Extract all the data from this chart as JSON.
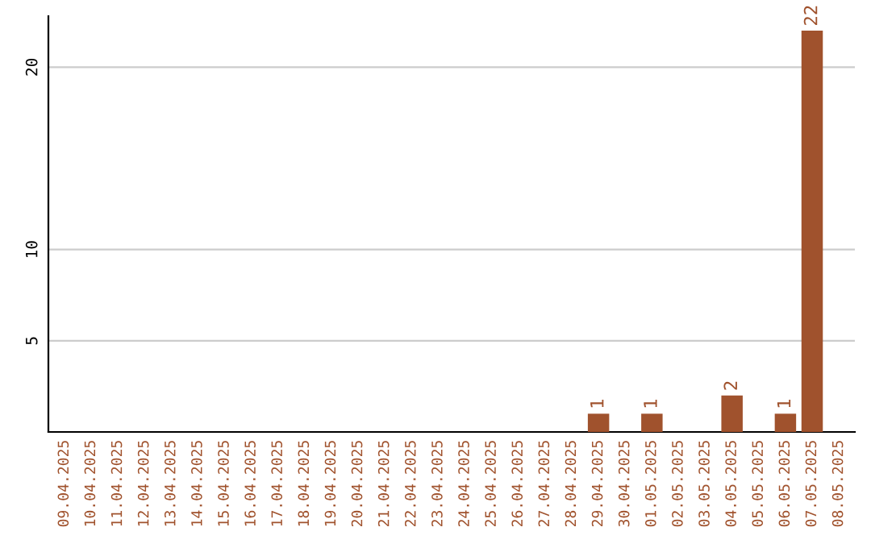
{
  "chart_data": {
    "type": "bar",
    "categories": [
      "09.04.2025",
      "10.04.2025",
      "11.04.2025",
      "12.04.2025",
      "13.04.2025",
      "14.04.2025",
      "15.04.2025",
      "16.04.2025",
      "17.04.2025",
      "18.04.2025",
      "19.04.2025",
      "20.04.2025",
      "21.04.2025",
      "22.04.2025",
      "23.04.2025",
      "24.04.2025",
      "25.04.2025",
      "26.04.2025",
      "27.04.2025",
      "28.04.2025",
      "29.04.2025",
      "30.04.2025",
      "01.05.2025",
      "02.05.2025",
      "03.05.2025",
      "04.05.2025",
      "05.05.2025",
      "06.05.2025",
      "07.05.2025",
      "08.05.2025"
    ],
    "values": [
      0,
      0,
      0,
      0,
      0,
      0,
      0,
      0,
      0,
      0,
      0,
      0,
      0,
      0,
      0,
      0,
      0,
      0,
      0,
      0,
      1,
      0,
      1,
      0,
      0,
      2,
      0,
      1,
      22,
      0
    ],
    "value_labels": [
      null,
      null,
      null,
      null,
      null,
      null,
      null,
      null,
      null,
      null,
      null,
      null,
      null,
      null,
      null,
      null,
      null,
      null,
      null,
      null,
      "1",
      null,
      "1",
      null,
      null,
      "2",
      null,
      "1",
      "22",
      null
    ],
    "color": "#a0522d",
    "ylim": [
      0,
      22.8
    ],
    "yticks": [
      5,
      10,
      20
    ],
    "grid": "y",
    "legend": false
  }
}
